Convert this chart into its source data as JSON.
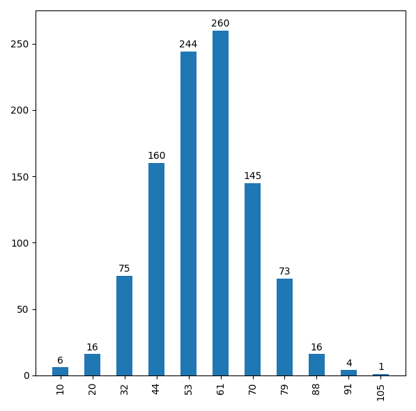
{
  "categories": [
    "10",
    "20",
    "32",
    "44",
    "53",
    "61",
    "70",
    "79",
    "88",
    "91",
    "105"
  ],
  "values": [
    6,
    16,
    75,
    160,
    244,
    260,
    145,
    73,
    16,
    4,
    1
  ],
  "bar_color": "#1f77b4",
  "ylim": [
    0,
    275
  ],
  "yticks": [
    0,
    50,
    100,
    150,
    200,
    250
  ],
  "background_color": "#ffffff",
  "label_fontsize": 10,
  "figwidth": 5.97,
  "figheight": 5.9,
  "dpi": 100
}
